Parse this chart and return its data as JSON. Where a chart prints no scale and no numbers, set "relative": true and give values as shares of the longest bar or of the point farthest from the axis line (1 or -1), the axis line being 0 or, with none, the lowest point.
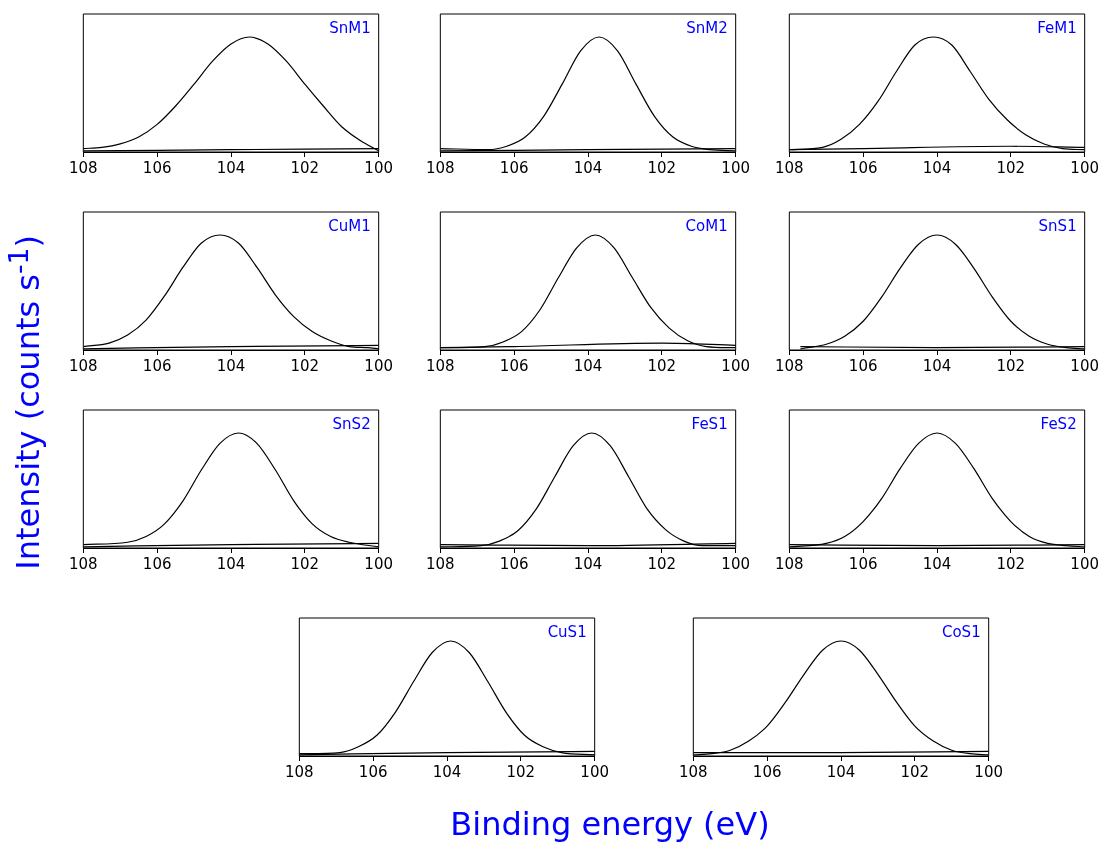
{
  "chart_data": [
    {
      "type": "line",
      "title": "SnM1",
      "xlabel": "Binding energy (eV)",
      "ylabel": "Intensity (counts s$^{-1}$)",
      "relative": true,
      "xlim": [
        108,
        100
      ],
      "xticks": [
        108,
        106,
        104,
        102,
        100
      ],
      "grid": false,
      "legend": false,
      "series": [
        {
          "color": "#000000",
          "x": [
            108,
            107.5,
            107,
            106.5,
            106,
            105.5,
            105,
            104.5,
            104,
            103.5,
            103,
            102.5,
            102,
            101.5,
            101,
            100.5,
            100
          ],
          "values": [
            0.03,
            0.04,
            0.07,
            0.13,
            0.24,
            0.4,
            0.59,
            0.79,
            0.94,
            1,
            0.94,
            0.79,
            0.59,
            0.4,
            0.22,
            0.1,
            0.01
          ]
        },
        {
          "color": "#000000",
          "x": [
            108,
            104,
            100
          ],
          "values": [
            0.01,
            0.02,
            0.03
          ]
        }
      ]
    },
    {
      "type": "line",
      "title": "SnM2",
      "relative": true,
      "xlim": [
        108,
        100
      ],
      "xticks": [
        108,
        106,
        104,
        102,
        100
      ],
      "grid": false,
      "legend": false,
      "series": [
        {
          "color": "#000000",
          "x": [
            108,
            106.7,
            106.2,
            105.7,
            105.2,
            104.7,
            104.2,
            103.7,
            103.2,
            102.7,
            102.2,
            101.7,
            101.2,
            100.7,
            100
          ],
          "values": [
            0.03,
            0.02,
            0.05,
            0.13,
            0.31,
            0.59,
            0.88,
            1,
            0.88,
            0.59,
            0.31,
            0.13,
            0.05,
            0.02,
            0.01
          ]
        },
        {
          "color": "#000000",
          "x": [
            108,
            104,
            100
          ],
          "values": [
            0.01,
            0.02,
            0.03
          ]
        }
      ]
    },
    {
      "type": "line",
      "title": "FeM1",
      "relative": true,
      "xlim": [
        108,
        100
      ],
      "xticks": [
        108,
        106,
        104,
        102,
        100
      ],
      "grid": false,
      "legend": false,
      "series": [
        {
          "color": "#000000",
          "x": [
            108,
            107.1,
            106.6,
            106.1,
            105.6,
            105.1,
            104.6,
            104.1,
            103.6,
            103.1,
            102.6,
            102.1,
            101.6,
            101.1,
            100.6,
            100
          ],
          "values": [
            0.02,
            0.04,
            0.11,
            0.24,
            0.44,
            0.7,
            0.93,
            1,
            0.93,
            0.7,
            0.46,
            0.28,
            0.15,
            0.07,
            0.03,
            0.02
          ]
        },
        {
          "color": "#000000",
          "x": [
            108,
            106,
            102,
            100
          ],
          "values": [
            0.02,
            0.03,
            0.05,
            0.04
          ]
        }
      ]
    },
    {
      "type": "line",
      "title": "CuM1",
      "relative": true,
      "xlim": [
        108,
        100
      ],
      "xticks": [
        108,
        106,
        104,
        102,
        100
      ],
      "grid": false,
      "legend": false,
      "series": [
        {
          "color": "#000000",
          "x": [
            108,
            107.3,
            106.8,
            106.3,
            105.8,
            105.3,
            104.8,
            104.3,
            103.8,
            103.3,
            102.8,
            102.3,
            101.8,
            101.3,
            100.8,
            100.3,
            100
          ],
          "values": [
            0.03,
            0.06,
            0.13,
            0.26,
            0.47,
            0.72,
            0.93,
            1,
            0.93,
            0.72,
            0.48,
            0.29,
            0.16,
            0.08,
            0.03,
            0.02,
            0.01
          ]
        },
        {
          "color": "#000000",
          "x": [
            108,
            104,
            100
          ],
          "values": [
            0.01,
            0.03,
            0.04
          ]
        }
      ]
    },
    {
      "type": "line",
      "title": "CoM1",
      "relative": true,
      "xlim": [
        108,
        100
      ],
      "xticks": [
        108,
        106,
        104,
        102,
        100
      ],
      "grid": false,
      "legend": false,
      "series": [
        {
          "color": "#000000",
          "x": [
            108,
            106.8,
            106.3,
            105.8,
            105.3,
            104.8,
            104.3,
            103.8,
            103.3,
            102.8,
            102.3,
            101.8,
            101.3,
            100.8,
            100
          ],
          "values": [
            0.02,
            0.03,
            0.07,
            0.16,
            0.35,
            0.63,
            0.89,
            1,
            0.89,
            0.63,
            0.37,
            0.19,
            0.08,
            0.03,
            0.02
          ]
        },
        {
          "color": "#000000",
          "x": [
            108,
            106,
            102,
            100
          ],
          "values": [
            0.02,
            0.03,
            0.06,
            0.04
          ]
        }
      ]
    },
    {
      "type": "line",
      "title": "SnS1",
      "relative": true,
      "xlim": [
        108,
        100
      ],
      "xticks": [
        108,
        106,
        104,
        102,
        100
      ],
      "grid": false,
      "legend": false,
      "series": [
        {
          "color": "#000000",
          "x": [
            107.7,
            107.5,
            107,
            106.5,
            106,
            105.5,
            105,
            104.5,
            104,
            103.5,
            103,
            102.5,
            102,
            101.5,
            101,
            100.5,
            100
          ],
          "values": [
            0.01,
            0.02,
            0.05,
            0.12,
            0.25,
            0.46,
            0.71,
            0.92,
            1,
            0.92,
            0.71,
            0.46,
            0.25,
            0.12,
            0.05,
            0.02,
            0.01
          ]
        },
        {
          "color": "#000000",
          "x": [
            107.7,
            104,
            100
          ],
          "values": [
            0.03,
            0.02,
            0.03
          ]
        }
      ]
    },
    {
      "type": "line",
      "title": "SnS2",
      "relative": true,
      "xlim": [
        108,
        100
      ],
      "xticks": [
        108,
        106,
        104,
        102,
        100
      ],
      "grid": false,
      "legend": false,
      "series": [
        {
          "color": "#000000",
          "x": [
            108,
            106.8,
            106.3,
            105.8,
            105.3,
            104.8,
            104.3,
            103.8,
            103.3,
            102.8,
            102.3,
            101.8,
            101.3,
            100.8,
            100
          ],
          "values": [
            0.03,
            0.05,
            0.1,
            0.21,
            0.41,
            0.68,
            0.91,
            1,
            0.91,
            0.68,
            0.41,
            0.21,
            0.1,
            0.05,
            0.01
          ]
        },
        {
          "color": "#000000",
          "x": [
            108,
            104,
            100
          ],
          "values": [
            0.01,
            0.03,
            0.04
          ]
        }
      ]
    },
    {
      "type": "line",
      "title": "FeS1",
      "relative": true,
      "xlim": [
        108,
        100
      ],
      "xticks": [
        108,
        106,
        104,
        102,
        100
      ],
      "grid": false,
      "legend": false,
      "series": [
        {
          "color": "#000000",
          "x": [
            108,
            106.9,
            106.4,
            105.9,
            105.4,
            104.9,
            104.4,
            103.9,
            103.4,
            102.9,
            102.4,
            101.9,
            101.4,
            100.9,
            100
          ],
          "values": [
            0.01,
            0.02,
            0.06,
            0.15,
            0.34,
            0.62,
            0.89,
            1,
            0.89,
            0.62,
            0.34,
            0.16,
            0.06,
            0.02,
            0.02
          ]
        },
        {
          "color": "#000000",
          "x": [
            108,
            104,
            100
          ],
          "values": [
            0.03,
            0.02,
            0.04
          ]
        }
      ]
    },
    {
      "type": "line",
      "title": "FeS2",
      "relative": true,
      "xlim": [
        108,
        100
      ],
      "xticks": [
        108,
        106,
        104,
        102,
        100
      ],
      "grid": false,
      "legend": false,
      "series": [
        {
          "color": "#000000",
          "x": [
            108,
            107,
            106.5,
            106,
            105.5,
            105,
            104.5,
            104,
            103.5,
            103,
            102.5,
            102,
            101.5,
            101,
            100.5,
            100
          ],
          "values": [
            0.01,
            0.04,
            0.1,
            0.23,
            0.43,
            0.69,
            0.91,
            1,
            0.91,
            0.69,
            0.43,
            0.23,
            0.1,
            0.04,
            0.02,
            0.01
          ]
        },
        {
          "color": "#000000",
          "x": [
            108,
            104,
            100
          ],
          "values": [
            0.03,
            0.02,
            0.03
          ]
        }
      ]
    },
    {
      "type": "line",
      "title": "CuS1",
      "relative": true,
      "xlim": [
        108,
        100
      ],
      "xticks": [
        108,
        106,
        104,
        102,
        100
      ],
      "grid": false,
      "legend": false,
      "series": [
        {
          "color": "#000000",
          "x": [
            108,
            106.9,
            106.4,
            105.9,
            105.4,
            104.9,
            104.4,
            103.9,
            103.4,
            102.9,
            102.4,
            101.9,
            101.4,
            100.9,
            100
          ],
          "values": [
            0.02,
            0.03,
            0.08,
            0.18,
            0.38,
            0.65,
            0.9,
            1,
            0.9,
            0.65,
            0.38,
            0.18,
            0.08,
            0.03,
            0.01
          ]
        },
        {
          "color": "#000000",
          "x": [
            108,
            104,
            100
          ],
          "values": [
            0.01,
            0.03,
            0.04
          ]
        }
      ]
    },
    {
      "type": "line",
      "title": "CoS1",
      "relative": true,
      "xlim": [
        108,
        100
      ],
      "xticks": [
        108,
        106,
        104,
        102,
        100
      ],
      "grid": false,
      "legend": false,
      "series": [
        {
          "color": "#000000",
          "x": [
            108,
            107.5,
            107,
            106.5,
            106,
            105.5,
            105,
            104.5,
            104,
            103.5,
            103,
            102.5,
            102,
            101.5,
            101,
            100.5,
            100
          ],
          "values": [
            0.01,
            0.02,
            0.05,
            0.13,
            0.26,
            0.47,
            0.71,
            0.92,
            1,
            0.92,
            0.71,
            0.47,
            0.26,
            0.13,
            0.05,
            0.02,
            0.01
          ]
        },
        {
          "color": "#000000",
          "x": [
            108,
            104,
            100
          ],
          "values": [
            0.03,
            0.03,
            0.04
          ]
        }
      ]
    }
  ]
}
